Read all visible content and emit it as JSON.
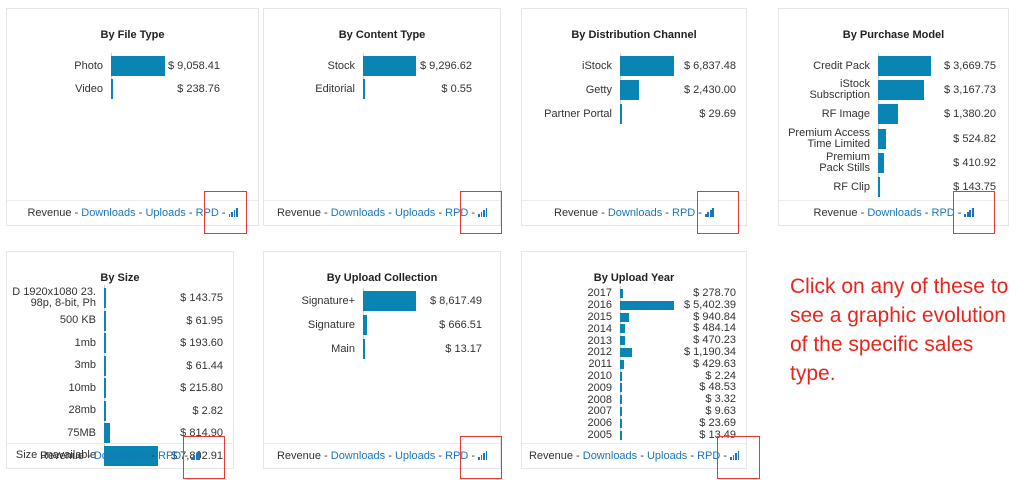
{
  "panels": [
    {
      "title": "By File Type",
      "type": "bar",
      "rows": [
        {
          "label": "Photo",
          "value": 9058.41,
          "value_label": "$ 9,058.41"
        },
        {
          "label": "Video",
          "value": 238.76,
          "value_label": "$ 238.76"
        }
      ],
      "footer": {
        "prefix": "Revenue - ",
        "links": [
          "Downloads",
          "Uploads",
          "RPD"
        ],
        "suffix": " -"
      }
    },
    {
      "title": "By Content Type",
      "type": "bar",
      "rows": [
        {
          "label": "Stock",
          "value": 9296.62,
          "value_label": "$ 9,296.62"
        },
        {
          "label": "Editorial",
          "value": 0.55,
          "value_label": "$ 0.55"
        }
      ],
      "footer": {
        "prefix": "Revenue - ",
        "links": [
          "Downloads",
          "Uploads",
          "RPD"
        ],
        "suffix": " -"
      }
    },
    {
      "title": "By Distribution Channel",
      "type": "bar",
      "rows": [
        {
          "label": "iStock",
          "value": 6837.48,
          "value_label": "$ 6,837.48"
        },
        {
          "label": "Getty",
          "value": 2430.0,
          "value_label": "$ 2,430.00"
        },
        {
          "label": "Partner Portal",
          "value": 29.69,
          "value_label": "$ 29.69"
        }
      ],
      "footer": {
        "prefix": "Revenue - ",
        "links": [
          "Downloads",
          "RPD"
        ],
        "suffix": " -"
      }
    },
    {
      "title": "By Purchase Model",
      "type": "bar",
      "rows": [
        {
          "label": "Credit Pack",
          "value": 3669.75,
          "value_label": "$ 3,669.75"
        },
        {
          "label": "iStock\nSubscription",
          "value": 3167.73,
          "value_label": "$ 3,167.73"
        },
        {
          "label": "RF Image",
          "value": 1380.2,
          "value_label": "$ 1,380.20"
        },
        {
          "label": "Premium Access\nTime Limited",
          "value": 524.82,
          "value_label": "$ 524.82"
        },
        {
          "label": "Premium\nPack Stills",
          "value": 410.92,
          "value_label": "$ 410.92"
        },
        {
          "label": "RF Clip",
          "value": 143.75,
          "value_label": "$ 143.75"
        }
      ],
      "footer": {
        "prefix": "Revenue - ",
        "links": [
          "Downloads",
          "RPD"
        ],
        "suffix": " -"
      }
    },
    {
      "title": "By Size",
      "type": "bar",
      "rows": [
        {
          "label": "D 1920x1080 23.\n98p, 8-bit, Ph",
          "value": 143.75,
          "value_label": "$ 143.75"
        },
        {
          "label": "500 KB",
          "value": 61.95,
          "value_label": "$ 61.95"
        },
        {
          "label": "1mb",
          "value": 193.6,
          "value_label": "$ 193.60"
        },
        {
          "label": "3mb",
          "value": 61.44,
          "value_label": "$ 61.44"
        },
        {
          "label": "10mb",
          "value": 215.8,
          "value_label": "$ 215.80"
        },
        {
          "label": "28mb",
          "value": 2.82,
          "value_label": "$ 2.82"
        },
        {
          "label": "75MB",
          "value": 814.9,
          "value_label": "$ 814.90"
        },
        {
          "label": "Size unavailable",
          "value": 7802.91,
          "value_label": "$ 7,802.91"
        }
      ],
      "footer": {
        "prefix": "Revenue - ",
        "links": [
          "Downloads",
          "RPD"
        ],
        "suffix": " -"
      }
    },
    {
      "title": "By Upload Collection",
      "type": "bar",
      "rows": [
        {
          "label": "Signature+",
          "value": 8617.49,
          "value_label": "$ 8,617.49"
        },
        {
          "label": "Signature",
          "value": 666.51,
          "value_label": "$ 666.51"
        },
        {
          "label": "Main",
          "value": 13.17,
          "value_label": "$ 13.17"
        }
      ],
      "footer": {
        "prefix": "Revenue - ",
        "links": [
          "Downloads",
          "Uploads",
          "RPD"
        ],
        "suffix": " -"
      }
    },
    {
      "title": "By Upload Year",
      "type": "bar",
      "rows": [
        {
          "label": "2017",
          "value": 278.7,
          "value_label": "$ 278.70"
        },
        {
          "label": "2016",
          "value": 5402.39,
          "value_label": "$ 5,402.39"
        },
        {
          "label": "2015",
          "value": 940.84,
          "value_label": "$ 940.84"
        },
        {
          "label": "2014",
          "value": 484.14,
          "value_label": "$ 484.14"
        },
        {
          "label": "2013",
          "value": 470.23,
          "value_label": "$ 470.23"
        },
        {
          "label": "2012",
          "value": 1190.34,
          "value_label": "$ 1,190.34"
        },
        {
          "label": "2011",
          "value": 429.63,
          "value_label": "$ 429.63"
        },
        {
          "label": "2010",
          "value": 2.24,
          "value_label": "$ 2.24"
        },
        {
          "label": "2009",
          "value": 48.53,
          "value_label": "$ 48.53"
        },
        {
          "label": "2008",
          "value": 3.32,
          "value_label": "$ 3.32"
        },
        {
          "label": "2007",
          "value": 9.63,
          "value_label": "$ 9.63"
        },
        {
          "label": "2006",
          "value": 23.69,
          "value_label": "$ 23.69"
        },
        {
          "label": "2005",
          "value": 13.49,
          "value_label": "$ 13.49"
        }
      ],
      "footer": {
        "prefix": "Revenue - ",
        "links": [
          "Downloads",
          "Uploads",
          "RPD"
        ],
        "suffix": " -"
      }
    }
  ],
  "chart_icon": "bar-chart-icon",
  "note": "Click on any of these to see a graphic evolution of the specific sales type.",
  "colors": {
    "bar": "#0a85b3",
    "link": "#1b75bb",
    "highlight": "#e53935",
    "note": "#e8251c"
  }
}
